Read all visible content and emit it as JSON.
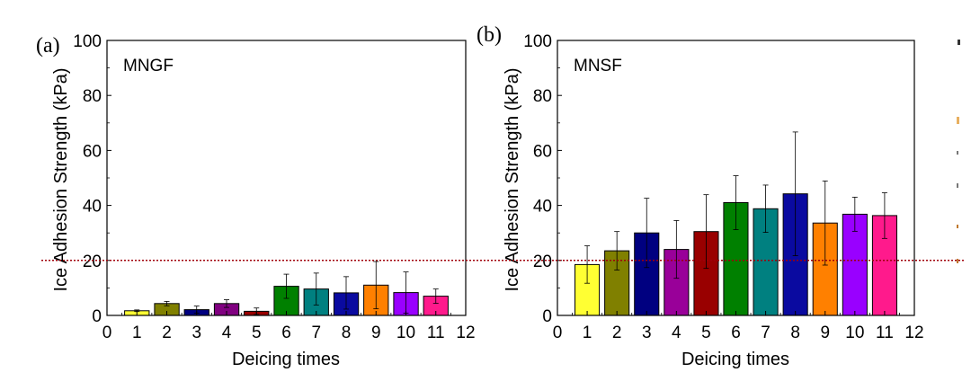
{
  "chart_data": [
    {
      "type": "bar",
      "panel_label": "(a)",
      "title": "MNGF",
      "xlabel": "Deicing times",
      "ylabel": "Ice Adhesion Strength (kPa)",
      "xlim": [
        0,
        12
      ],
      "ylim": [
        0,
        100
      ],
      "xticks": [
        "0",
        "1",
        "2",
        "3",
        "4",
        "5",
        "6",
        "7",
        "8",
        "9",
        "10",
        "11",
        "12"
      ],
      "yticks": [
        "0",
        "20",
        "40",
        "60",
        "80",
        "100"
      ],
      "categories": [
        1,
        2,
        3,
        4,
        5,
        6,
        7,
        8,
        9,
        10,
        11
      ],
      "values": [
        1.7,
        4.3,
        2.1,
        4.3,
        1.5,
        10.6,
        9.6,
        8.2,
        11.0,
        8.3,
        7.0
      ],
      "errors": [
        0.3,
        0.8,
        1.3,
        1.4,
        1.2,
        4.4,
        5.8,
        5.9,
        8.6,
        7.5,
        2.6
      ],
      "colors": [
        "#ffff33",
        "#808000",
        "#000080",
        "#800080",
        "#990000",
        "#008000",
        "#008080",
        "#0a0aa0",
        "#ff8000",
        "#9900ff",
        "#ff1a8c"
      ],
      "reference_line": 20,
      "grid": false
    },
    {
      "type": "bar",
      "panel_label": "(b)",
      "title": "MNSF",
      "xlabel": "Deicing times",
      "ylabel": "Ice Adhesion Strength (kPa)",
      "xlim": [
        0,
        12
      ],
      "ylim": [
        0,
        100
      ],
      "xticks": [
        "0",
        "1",
        "2",
        "3",
        "4",
        "5",
        "6",
        "7",
        "8",
        "9",
        "10",
        "11",
        "12"
      ],
      "yticks": [
        "0",
        "20",
        "40",
        "60",
        "80",
        "100"
      ],
      "categories": [
        1,
        2,
        3,
        4,
        5,
        6,
        7,
        8,
        9,
        10,
        11
      ],
      "values": [
        18.5,
        23.5,
        30.0,
        24.0,
        30.5,
        41.0,
        38.8,
        44.2,
        33.6,
        36.8,
        36.3
      ],
      "errors": [
        6.8,
        7.0,
        12.6,
        10.5,
        13.4,
        9.8,
        8.6,
        22.5,
        15.3,
        6.2,
        8.3
      ],
      "colors": [
        "#ffff33",
        "#808000",
        "#000080",
        "#990099",
        "#990000",
        "#008000",
        "#008080",
        "#0a0aa0",
        "#ff8000",
        "#9900ff",
        "#ff1a8c"
      ],
      "reference_line": 20,
      "grid": false
    }
  ]
}
